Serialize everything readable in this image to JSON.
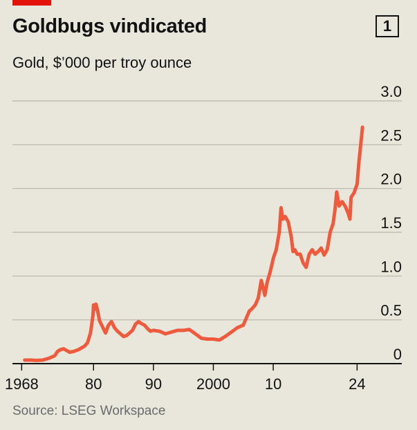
{
  "header": {
    "title": "Goldbugs vindicated",
    "chart_number": "1",
    "subtitle": "Gold, $’000 per troy ounce"
  },
  "footer": {
    "source": "Source: LSEG Workspace"
  },
  "colors": {
    "accent_tag": "#e3120b",
    "line": "#ee5a3b",
    "grid": "#b7b5ae",
    "axis": "#121212",
    "background": "#e9e6dc"
  },
  "chart_data": {
    "type": "line",
    "title": "Goldbugs vindicated",
    "subtitle": "Gold, $’000 per troy ounce",
    "xlabel": "",
    "ylabel": "",
    "xlim": [
      1966,
      2031
    ],
    "ylim": [
      0,
      3.0
    ],
    "y_ticks": [
      0,
      0.5,
      1.0,
      1.5,
      2.0,
      2.5,
      3.0
    ],
    "y_tick_labels": [
      "0",
      "0.5",
      "1.0",
      "1.5",
      "2.0",
      "2.5",
      "3.0"
    ],
    "x_ticks": [
      1968,
      1980,
      1990,
      2000,
      2010,
      2024
    ],
    "x_tick_labels": [
      "1968",
      "80",
      "90",
      "2000",
      "10",
      "24"
    ],
    "grid": true,
    "y_axis_position": "right",
    "series": [
      {
        "color": "#ee5a3b",
        "x": [
          1968.5,
          1969.5,
          1970.5,
          1971.5,
          1972.5,
          1973.5,
          1974.0,
          1974.5,
          1975.0,
          1975.5,
          1976.0,
          1976.7,
          1977.5,
          1978.5,
          1979.0,
          1979.5,
          1979.9,
          1980.0,
          1980.2,
          1980.4,
          1980.7,
          1981.0,
          1981.5,
          1982.0,
          1982.5,
          1983.0,
          1983.5,
          1984.0,
          1984.5,
          1985.0,
          1985.5,
          1986.0,
          1986.5,
          1987.0,
          1987.5,
          1987.9,
          1988.5,
          1989.0,
          1989.5,
          1990.0,
          1991.0,
          1992.0,
          1993.0,
          1994.0,
          1995.0,
          1996.0,
          1997.0,
          1998.0,
          1999.0,
          2000.0,
          2001.0,
          2002.0,
          2003.0,
          2004.0,
          2005.0,
          2006.0,
          2006.5,
          2007.0,
          2007.5,
          2008.0,
          2008.3,
          2008.6,
          2009.0,
          2009.5,
          2010.0,
          2010.5,
          2011.0,
          2011.3,
          2011.6,
          2012.0,
          2012.5,
          2013.0,
          2013.3,
          2013.6,
          2014.0,
          2014.5,
          2015.0,
          2015.5,
          2016.0,
          2016.5,
          2017.0,
          2017.5,
          2018.0,
          2018.5,
          2019.0,
          2019.5,
          2020.0,
          2020.3,
          2020.6,
          2021.0,
          2021.5,
          2022.0,
          2022.5,
          2022.8,
          2023.0,
          2023.5,
          2024.0,
          2024.3,
          2024.6,
          2024.9
        ],
        "y": [
          0.04,
          0.04,
          0.036,
          0.04,
          0.06,
          0.09,
          0.14,
          0.16,
          0.17,
          0.15,
          0.13,
          0.14,
          0.16,
          0.2,
          0.24,
          0.35,
          0.55,
          0.67,
          0.62,
          0.68,
          0.6,
          0.49,
          0.42,
          0.35,
          0.44,
          0.48,
          0.41,
          0.37,
          0.34,
          0.31,
          0.32,
          0.35,
          0.38,
          0.45,
          0.48,
          0.46,
          0.44,
          0.4,
          0.37,
          0.38,
          0.37,
          0.34,
          0.36,
          0.38,
          0.38,
          0.39,
          0.34,
          0.29,
          0.28,
          0.28,
          0.27,
          0.31,
          0.36,
          0.41,
          0.44,
          0.6,
          0.63,
          0.67,
          0.75,
          0.95,
          0.87,
          0.78,
          0.93,
          1.05,
          1.2,
          1.3,
          1.5,
          1.78,
          1.65,
          1.68,
          1.62,
          1.45,
          1.28,
          1.3,
          1.25,
          1.25,
          1.15,
          1.1,
          1.25,
          1.3,
          1.25,
          1.28,
          1.32,
          1.24,
          1.3,
          1.5,
          1.6,
          1.75,
          1.96,
          1.8,
          1.85,
          1.8,
          1.72,
          1.65,
          1.9,
          1.95,
          2.05,
          2.3,
          2.5,
          2.7
        ]
      }
    ]
  }
}
